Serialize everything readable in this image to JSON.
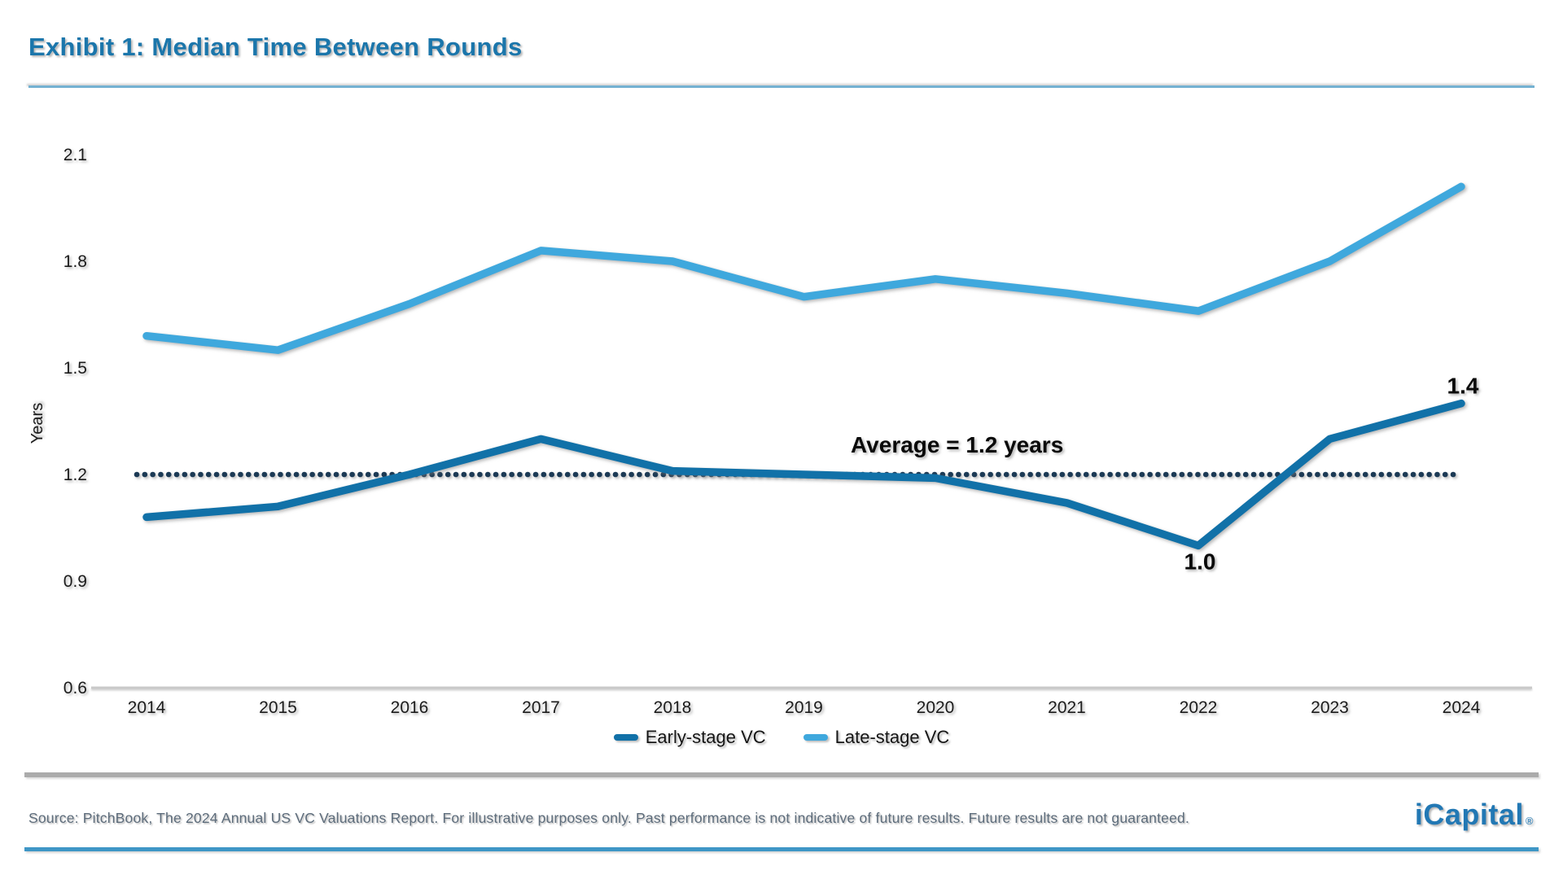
{
  "header": {
    "title": "Exhibit 1: Median Time Between Rounds"
  },
  "chart_data": {
    "type": "line",
    "title": "Exhibit 1: Median Time Between Rounds",
    "x": [
      "2014",
      "2015",
      "2016",
      "2017",
      "2018",
      "2019",
      "2020",
      "2021",
      "2022",
      "2023",
      "2024"
    ],
    "series": [
      {
        "name": "Early-stage VC",
        "color": "#1171A8",
        "values": [
          1.08,
          1.11,
          1.2,
          1.3,
          1.21,
          1.2,
          1.19,
          1.12,
          1.0,
          1.3,
          1.4
        ]
      },
      {
        "name": "Late-stage VC",
        "color": "#3FA8DD",
        "values": [
          1.59,
          1.55,
          1.68,
          1.83,
          1.8,
          1.7,
          1.75,
          1.71,
          1.66,
          1.8,
          2.01
        ]
      }
    ],
    "xlabel": "",
    "ylabel": "Years",
    "ylim": [
      0.6,
      2.1
    ],
    "yticks": [
      0.6,
      0.9,
      1.2,
      1.5,
      1.8,
      2.1
    ],
    "grid": false,
    "legend_position": "bottom",
    "average_line": {
      "value": 1.2,
      "label": "Average = 1.2 years"
    },
    "annotations": [
      {
        "x": "2022",
        "series": "Early-stage VC",
        "label": "1.0",
        "placement": "below"
      },
      {
        "x": "2024",
        "series": "Early-stage VC",
        "label": "1.4",
        "placement": "above"
      }
    ]
  },
  "footer": {
    "source": "Source: PitchBook, The 2024 Annual US VC Valuations Report. For illustrative purposes only. Past performance is not indicative of future results. Future results are not guaranteed.",
    "logo": "iCapital",
    "logo_mark": "®"
  },
  "colors": {
    "title": "#1B76AB",
    "early_stage": "#1171A8",
    "late_stage": "#3FA8DD",
    "average_line": "#1C3A55",
    "annotation_text": "#0A0A0A",
    "axis_line": "#C9C9C9",
    "tick_text": "#1C1C1C",
    "divider_top": "#74B2D2",
    "divider_gray": "#ABABAB",
    "divider_bottom": "#3E96C6",
    "source_text": "#5D6C7B",
    "logo": "#2278B4"
  }
}
